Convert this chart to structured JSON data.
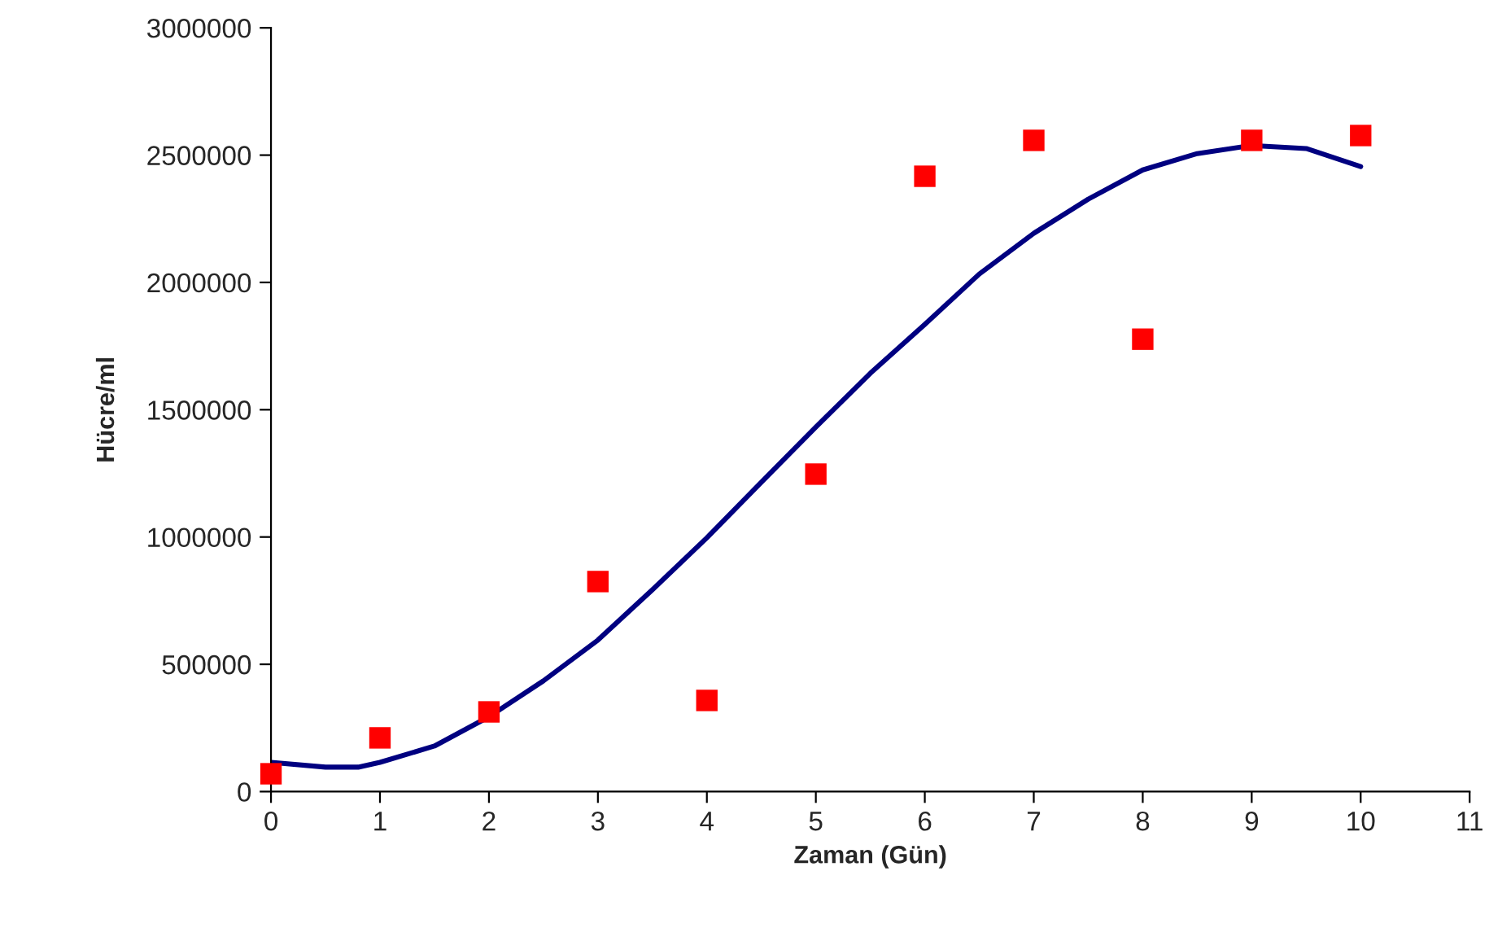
{
  "chart_data": {
    "type": "scatter",
    "xlabel": "Zaman (Gün)",
    "ylabel": "Hücre/ml",
    "xlim": [
      0,
      11
    ],
    "xticks": [
      0,
      1,
      2,
      3,
      4,
      5,
      6,
      7,
      8,
      9,
      10,
      11
    ],
    "ylim": [
      0,
      3000000
    ],
    "yticks": [
      0,
      500000,
      1000000,
      1500000,
      2000000,
      2500000,
      3000000
    ],
    "grid": false,
    "legend": false,
    "series": [
      {
        "color": "#ff0000",
        "marker": "square",
        "x": [
          0,
          1,
          2,
          3,
          4,
          5,
          6,
          7,
          8,
          9,
          10
        ],
        "values": [
          70000,
          211000,
          313000,
          825000,
          358000,
          1247000,
          2417000,
          2558000,
          1777000,
          2558000,
          2577000
        ]
      },
      {
        "type": "line",
        "color": "#000080",
        "marker": "none",
        "line_style": "solid",
        "x": [
          0,
          0.5,
          0.8,
          1,
          1.5,
          2,
          2.5,
          3,
          3.5,
          4,
          4.5,
          5,
          5.5,
          6,
          6.5,
          7,
          7.5,
          8,
          8.5,
          9,
          9.5,
          10
        ],
        "values": [
          115000,
          96000,
          96000,
          115000,
          179000,
          294000,
          435000,
          595000,
          793000,
          997000,
          1215000,
          1432000,
          1643000,
          1835000,
          2033000,
          2193000,
          2327000,
          2442000,
          2506000,
          2538000,
          2526000,
          2455000
        ]
      }
    ]
  }
}
